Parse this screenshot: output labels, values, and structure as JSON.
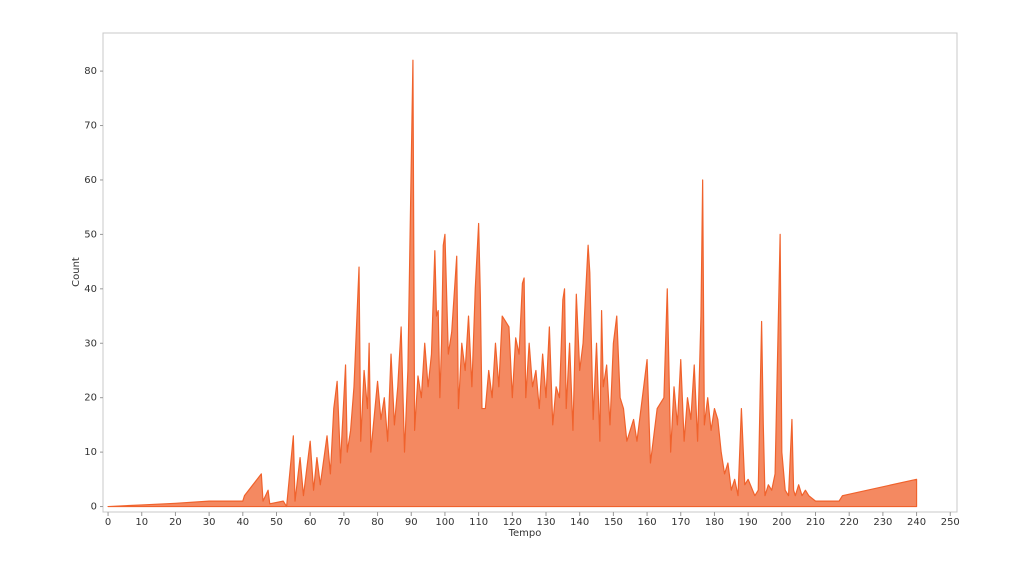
{
  "chart_data": {
    "type": "area",
    "x_label": "Tempo",
    "y_label": "Count",
    "color": "#f0622c",
    "x": [
      0,
      10,
      20,
      30,
      40,
      40.5,
      43,
      45.5,
      46,
      47.5,
      48,
      52,
      53,
      55,
      55.5,
      57,
      58,
      60,
      61,
      62,
      63,
      65,
      66,
      67,
      68,
      69,
      70.5,
      71,
      72,
      73,
      74.5,
      75,
      76,
      77,
      77.5,
      78,
      80,
      81,
      82,
      83,
      84,
      85,
      86,
      87,
      88,
      89,
      90.5,
      91,
      92,
      93,
      94,
      95,
      96,
      97,
      97.5,
      98,
      98.5,
      99,
      99.5,
      100,
      101,
      102,
      103.5,
      104,
      105,
      106,
      107,
      108,
      109,
      110,
      110.5,
      111,
      112,
      113,
      114,
      115,
      116,
      117,
      118,
      119,
      120,
      121,
      122,
      123,
      123.5,
      124,
      125,
      126,
      127,
      128,
      129,
      130,
      131,
      132,
      133,
      134,
      135,
      135.5,
      136,
      137,
      138,
      139,
      140,
      141,
      142.5,
      143,
      144,
      145,
      146,
      146.5,
      147,
      148,
      149,
      150,
      151,
      152,
      153,
      154,
      155,
      156,
      157,
      160,
      161,
      162,
      163,
      165,
      166,
      167,
      168,
      169,
      170,
      171,
      172,
      173,
      174,
      175,
      176,
      176.5,
      177,
      178,
      179,
      180,
      181,
      182,
      183,
      184,
      185,
      186,
      187,
      188,
      189,
      190,
      192,
      193,
      194,
      194.5,
      195,
      196,
      197,
      198,
      199.5,
      200,
      201,
      202,
      203,
      203.5,
      204,
      205,
      206,
      207,
      208,
      210,
      217,
      218,
      240
    ],
    "values": [
      0,
      0.3,
      0.6,
      1,
      1,
      2,
      4,
      6,
      1,
      3,
      0.5,
      1,
      0,
      13,
      1,
      9,
      2,
      12,
      3,
      9,
      4,
      13,
      6,
      18,
      23,
      8,
      26,
      10,
      14,
      22,
      44,
      12,
      25,
      18,
      30,
      10,
      23,
      16,
      20,
      12,
      28,
      15,
      22,
      33,
      10,
      25,
      82,
      14,
      24,
      20,
      30,
      22,
      28,
      47,
      35,
      36,
      20,
      30,
      48,
      50,
      28,
      32,
      46,
      18,
      30,
      25,
      35,
      22,
      40,
      52,
      39,
      18,
      18,
      25,
      20,
      30,
      22,
      35,
      34,
      33,
      20,
      31,
      28,
      41,
      42,
      20,
      30,
      22,
      25,
      18,
      28,
      20,
      33,
      15,
      22,
      20,
      38,
      40,
      18,
      30,
      14,
      39,
      25,
      30,
      48,
      43,
      16,
      30,
      12,
      36,
      22,
      26,
      15,
      30,
      35,
      20,
      18,
      12,
      14,
      16,
      12,
      27,
      8,
      13,
      18,
      20,
      40,
      10,
      22,
      15,
      27,
      12,
      20,
      16,
      26,
      12,
      35,
      60,
      15,
      20,
      14,
      18,
      16,
      10,
      6,
      8,
      3,
      5,
      2,
      18,
      4,
      5,
      2,
      3,
      34,
      15,
      2,
      4,
      3,
      6,
      50,
      10,
      3,
      2,
      16,
      3,
      2,
      4,
      2,
      3,
      2,
      1,
      1,
      2,
      5
    ],
    "xlim": [
      -1.5,
      252
    ],
    "ylim": [
      -1,
      87
    ],
    "xticks": [
      0,
      10,
      20,
      30,
      40,
      50,
      60,
      70,
      80,
      90,
      100,
      110,
      120,
      130,
      140,
      150,
      160,
      170,
      180,
      190,
      200,
      210,
      220,
      230,
      240,
      250
    ],
    "yticks": [
      0,
      10,
      20,
      30,
      40,
      50,
      60,
      70,
      80
    ]
  }
}
